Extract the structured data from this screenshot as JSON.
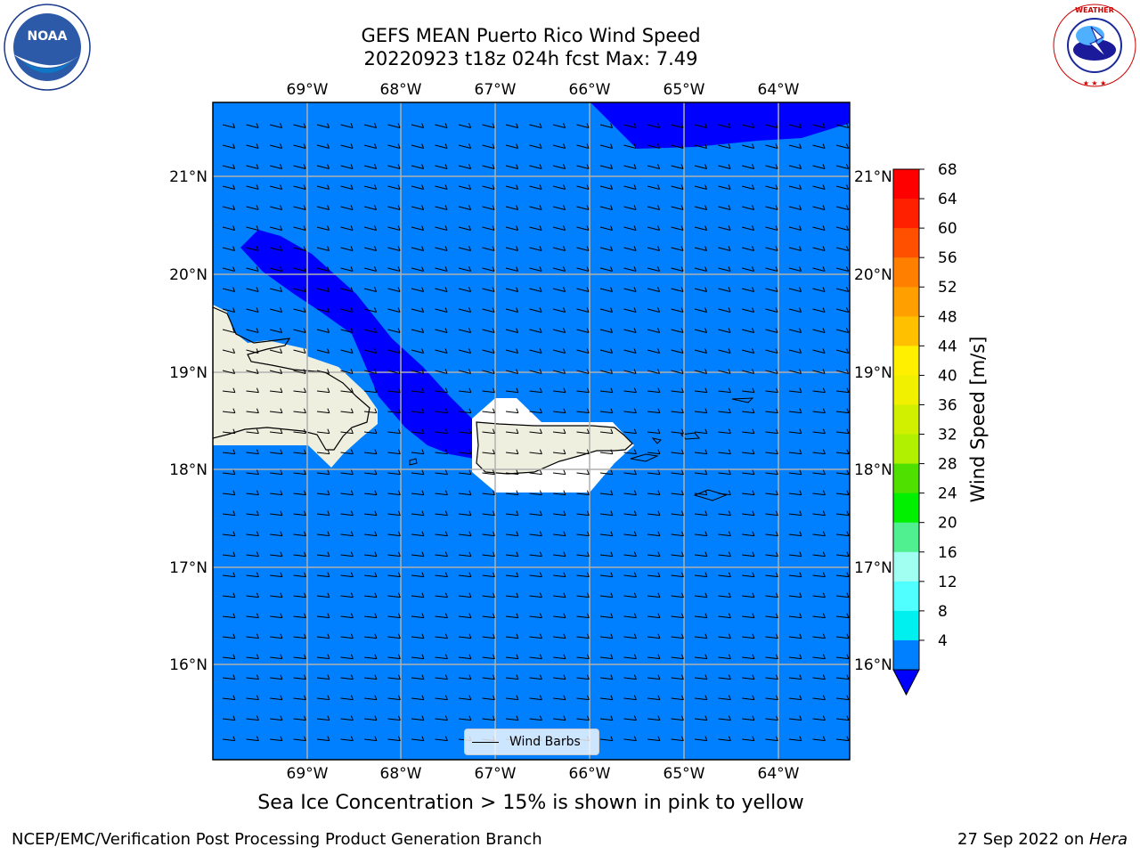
{
  "title": {
    "line1": "GEFS MEAN Puerto Rico Wind Speed",
    "line2": "20220923 t18z 024h fcst   Max: 7.49"
  },
  "logos": {
    "left": "NOAA",
    "left_ring": "NATIONAL OCEANIC AND ATMOSPHERIC ADMINISTRATION · U.S. DEPARTMENT OF COMMERCE",
    "right_ring": "NATIONAL WEATHER SERVICE"
  },
  "map": {
    "lon_labels": [
      "69°W",
      "68°W",
      "67°W",
      "66°W",
      "65°W",
      "64°W"
    ],
    "lat_labels": [
      "21°N",
      "20°N",
      "19°N",
      "18°N",
      "17°N",
      "16°N"
    ],
    "legend_label": "Wind Barbs",
    "colors": {
      "ocean_fill": "#0080ff",
      "low_wind_fill": "#0000ff",
      "land": "#efefdf",
      "gridline": "#b0b0b0"
    }
  },
  "colorbar": {
    "label": "Wind Speed [m/s]",
    "ticks": [
      "68",
      "64",
      "60",
      "56",
      "52",
      "48",
      "44",
      "40",
      "36",
      "32",
      "28",
      "24",
      "20",
      "16",
      "12",
      "8",
      "4"
    ],
    "colors": [
      "#ff0000",
      "#ff2000",
      "#ff5000",
      "#ff8000",
      "#ffa000",
      "#ffc000",
      "#fff000",
      "#f0f000",
      "#d0f000",
      "#b0f000",
      "#50e000",
      "#00f000",
      "#50f090",
      "#a0fff0",
      "#50ffff",
      "#00f0f0",
      "#0080ff"
    ],
    "under_color": "#0000ff"
  },
  "note": "Sea Ice Concentration > 15% is shown in pink to yellow",
  "footer": {
    "left": "NCEP/EMC/Verification Post Processing Product Generation Branch",
    "right_date": "27 Sep 2022 on ",
    "right_host": "Hera"
  }
}
